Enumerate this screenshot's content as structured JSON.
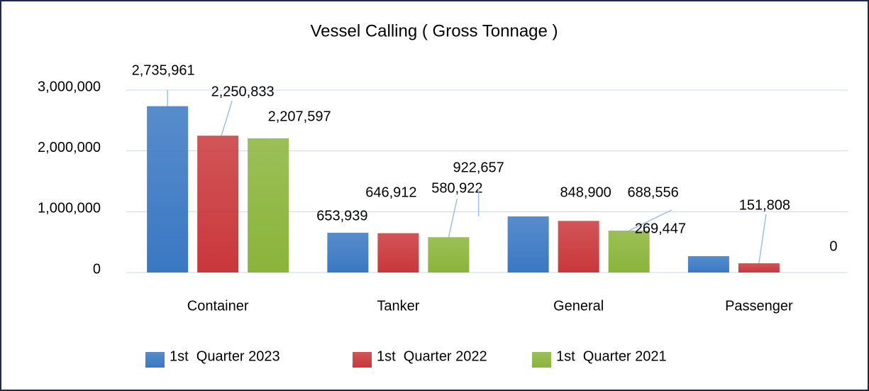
{
  "chart_data": {
    "type": "bar",
    "title": "Vessel Calling ( Gross Tonnage )",
    "categories": [
      "Container",
      "Tanker",
      "General",
      "Passenger"
    ],
    "series": [
      {
        "name": "1st  Quarter 2023",
        "color": "#3a78c3",
        "values": [
          2735961,
          653939,
          922657,
          269447
        ],
        "value_labels": [
          "2,735,961",
          "653,939",
          "922,657",
          "269,447"
        ]
      },
      {
        "name": "1st  Quarter 2022",
        "color": "#c9373a",
        "values": [
          2250833,
          646912,
          848900,
          151808
        ],
        "value_labels": [
          "2,250,833",
          "646,912",
          "848,900",
          "151,808"
        ]
      },
      {
        "name": "1st  Quarter 2021",
        "color": "#8ab43a",
        "values": [
          2207597,
          580922,
          688556,
          0
        ],
        "value_labels": [
          "2,207,597",
          "580,922",
          "688,556",
          "0"
        ]
      }
    ],
    "ylim": [
      0,
      3000000
    ],
    "yticks": [
      0,
      {
        "value": 1000000,
        "label": "1,000,000"
      },
      {
        "value": 2000000,
        "label": "2,000,000"
      },
      {
        "value": 3000000,
        "label": "3,000,000"
      }
    ],
    "grid": true,
    "legend": "bottom"
  }
}
